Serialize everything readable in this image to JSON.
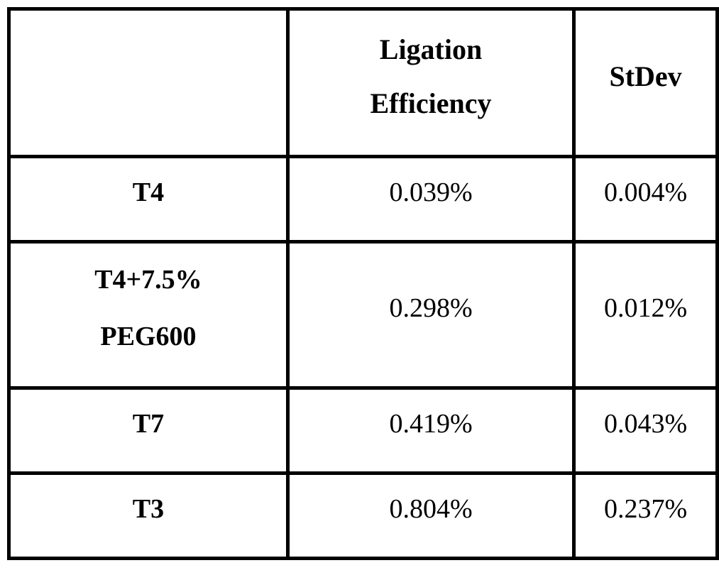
{
  "table": {
    "border_color": "#000000",
    "background_color": "#ffffff",
    "header": {
      "corner": "",
      "efficiency_lines": [
        "Ligation",
        "Efficiency"
      ],
      "stdev": "StDev"
    },
    "rows": [
      {
        "label_lines": [
          "T4"
        ],
        "efficiency": "0.039%",
        "stdev": "0.004%"
      },
      {
        "label_lines": [
          "T4+7.5%",
          "PEG600"
        ],
        "efficiency": "0.298%",
        "stdev": "0.012%"
      },
      {
        "label_lines": [
          "T7"
        ],
        "efficiency": "0.419%",
        "stdev": "0.043%"
      },
      {
        "label_lines": [
          "T3"
        ],
        "efficiency": "0.804%",
        "stdev": "0.237%"
      }
    ]
  },
  "chart_data": {
    "type": "table",
    "title": "",
    "columns": [
      "",
      "Ligation Efficiency",
      "StDev"
    ],
    "categories": [
      "T4",
      "T4+7.5% PEG600",
      "T7",
      "T3"
    ],
    "series": [
      {
        "name": "Ligation Efficiency",
        "values": [
          "0.039%",
          "0.298%",
          "0.419%",
          "0.804%"
        ]
      },
      {
        "name": "StDev",
        "values": [
          "0.004%",
          "0.012%",
          "0.043%",
          "0.237%"
        ]
      }
    ]
  }
}
